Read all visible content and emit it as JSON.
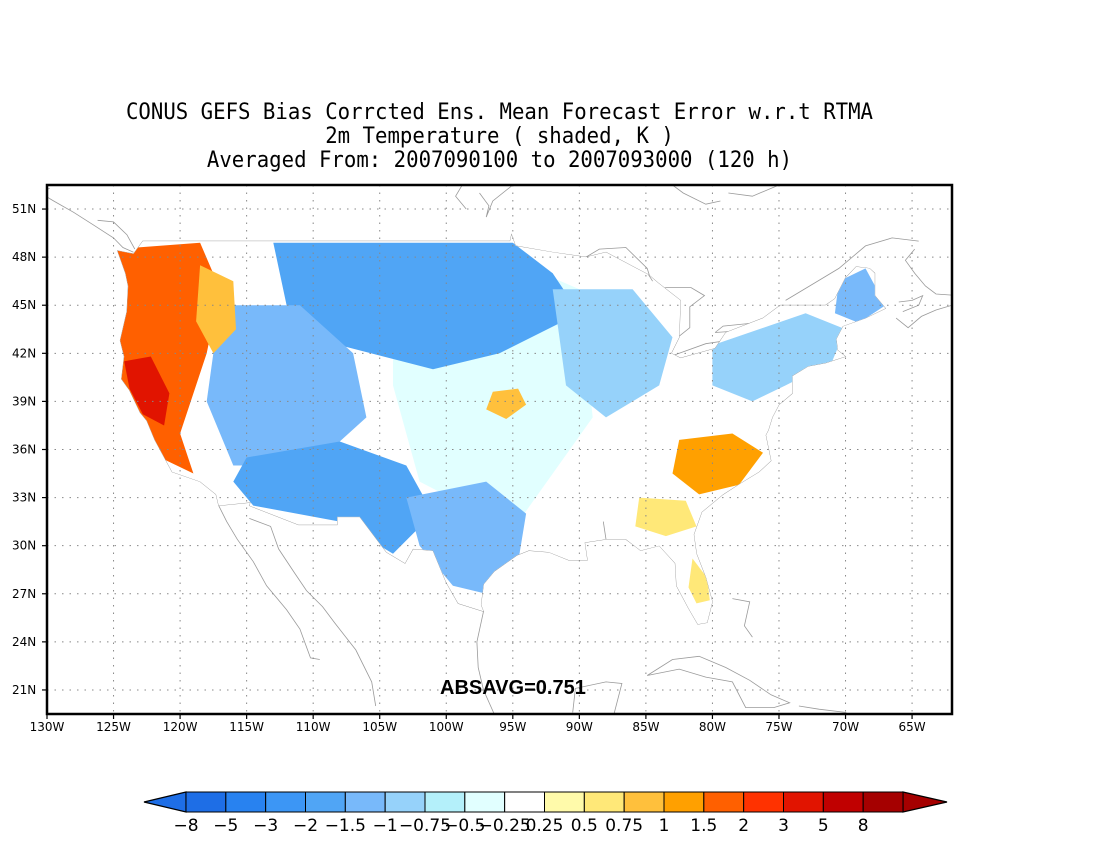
{
  "title": {
    "line1": "CONUS GEFS Bias Corrcted Ens. Mean Forecast Error w.r.t RTMA",
    "line2": "2m Temperature ( shaded, K )",
    "line3": "Averaged From: 2007090100 to 2007093000 (120 h)"
  },
  "map": {
    "lat_ticks": [
      "51N",
      "48N",
      "45N",
      "42N",
      "39N",
      "36N",
      "33N",
      "30N",
      "27N",
      "24N",
      "21N"
    ],
    "lat_values": [
      51,
      48,
      45,
      42,
      39,
      36,
      33,
      30,
      27,
      24,
      21
    ],
    "lon_ticks": [
      "130W",
      "125W",
      "120W",
      "115W",
      "110W",
      "105W",
      "100W",
      "95W",
      "90W",
      "85W",
      "80W",
      "75W",
      "70W",
      "65W"
    ],
    "lon_values": [
      -130,
      -125,
      -120,
      -115,
      -110,
      -105,
      -100,
      -95,
      -90,
      -85,
      -80,
      -75,
      -70,
      -65
    ],
    "lon_range": [
      -130,
      -62
    ],
    "lat_range": [
      19.5,
      52.5
    ],
    "grid": true,
    "absavg_label": "ABSAVG=0.751",
    "regions": [
      {
        "name": "conus-base",
        "bias": -0.25
      },
      {
        "name": "west-coast",
        "bias": 1.5
      },
      {
        "name": "northern-california",
        "bias": 3
      },
      {
        "name": "northwest-interior",
        "bias": 0.75
      },
      {
        "name": "northern-plains",
        "bias": -2
      },
      {
        "name": "great-basin",
        "bias": -1.5
      },
      {
        "name": "southwest",
        "bias": -2
      },
      {
        "name": "texas",
        "bias": -1.5
      },
      {
        "name": "central-plains",
        "bias": -0.5
      },
      {
        "name": "kansas-missouri",
        "bias": 0.75
      },
      {
        "name": "great-lakes",
        "bias": -1
      },
      {
        "name": "southeast-carolinas",
        "bias": 1
      },
      {
        "name": "georgia",
        "bias": 0.5
      },
      {
        "name": "florida",
        "bias": 0.5
      },
      {
        "name": "northeast",
        "bias": -1
      },
      {
        "name": "maine",
        "bias": -1.5
      }
    ]
  },
  "colorbar": {
    "labels": [
      "−8",
      "−5",
      "−3",
      "−2",
      "−1.5",
      "−1",
      "−0.75",
      "−0.5",
      "−0.25",
      "0.25",
      "0.5",
      "0.75",
      "1",
      "1.5",
      "2",
      "3",
      "5",
      "8"
    ],
    "colors": [
      "#1e6ee6",
      "#2882f0",
      "#3c96f5",
      "#50a5f5",
      "#78b9fa",
      "#96d2fa",
      "#b4f0fa",
      "#e1ffff",
      "#ffffff",
      "#fffaaa",
      "#ffe878",
      "#ffc03c",
      "#ffa000",
      "#ff6000",
      "#ff3200",
      "#e11400",
      "#c00000",
      "#a50000"
    ],
    "under_color": "#1e6ee6",
    "over_color": "#a50000"
  }
}
